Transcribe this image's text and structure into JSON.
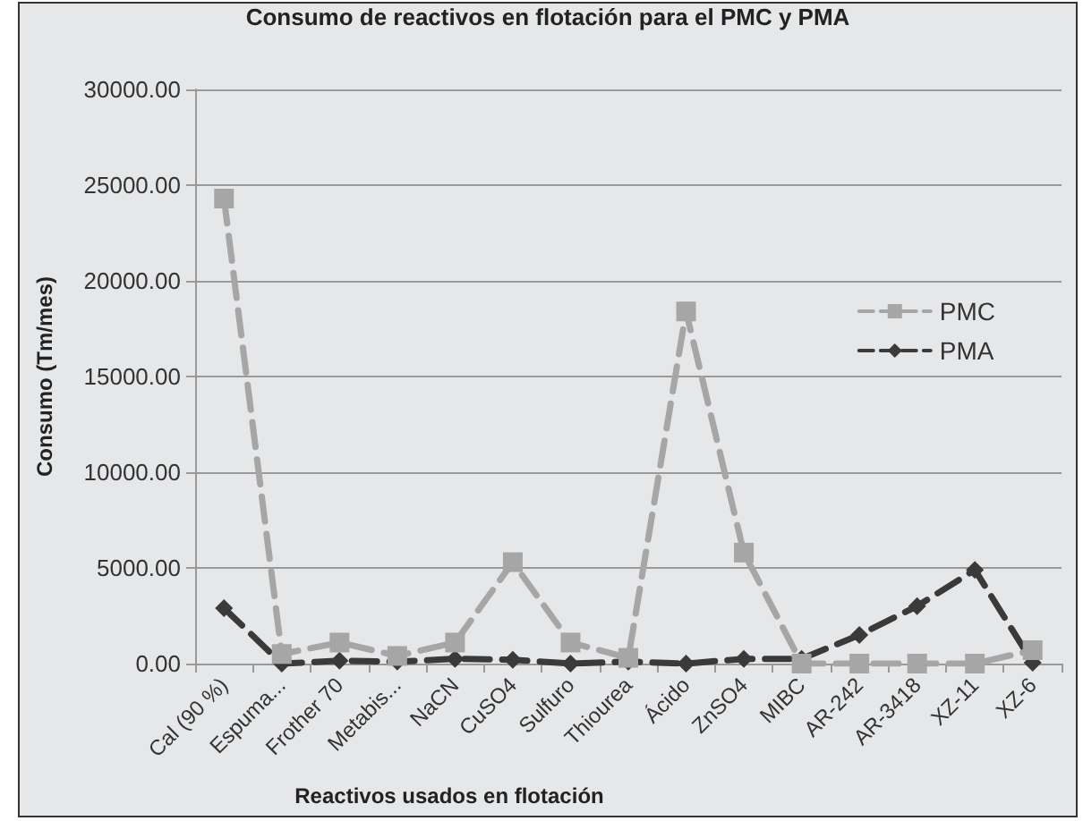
{
  "chart_data": {
    "type": "line",
    "title": "Consumo de reactivos en flotación para el PMC y PMA",
    "xlabel": "Reactivos usados en flotación",
    "ylabel": "Consumo (Tm/mes)",
    "categories": [
      "Cal (90 %)",
      "Espuma...",
      "Frother 70",
      "Metabis...",
      "NaCN",
      "CuSO4",
      "Sulfuro",
      "Thiourea",
      "Ácido",
      "ZnSO4",
      "MIBC",
      "AR-242",
      "AR-3418",
      "XZ-11",
      "XZ-6"
    ],
    "series": [
      {
        "name": "PMC",
        "color": "#a6a6a6",
        "marker": "square",
        "values": [
          24300,
          500,
          1100,
          400,
          1100,
          5300,
          1100,
          300,
          18400,
          5800,
          0,
          0,
          0,
          0,
          700
        ]
      },
      {
        "name": "PMA",
        "color": "#3a3a3a",
        "marker": "diamond",
        "values": [
          2900,
          0,
          150,
          100,
          250,
          200,
          0,
          100,
          0,
          250,
          250,
          1500,
          3000,
          4900,
          50
        ]
      }
    ],
    "ylim": [
      0,
      30000
    ],
    "yticks": [
      {
        "value": 0,
        "label": "0.00"
      },
      {
        "value": 5000,
        "label": "5000.00"
      },
      {
        "value": 10000,
        "label": "10000.00"
      },
      {
        "value": 15000,
        "label": "15000.00"
      },
      {
        "value": 20000,
        "label": "20000.00"
      },
      {
        "value": 25000,
        "label": "25000.00"
      },
      {
        "value": 30000,
        "label": "30000.00"
      }
    ],
    "grid": "y",
    "legend": "right",
    "line_style": "dashed"
  }
}
